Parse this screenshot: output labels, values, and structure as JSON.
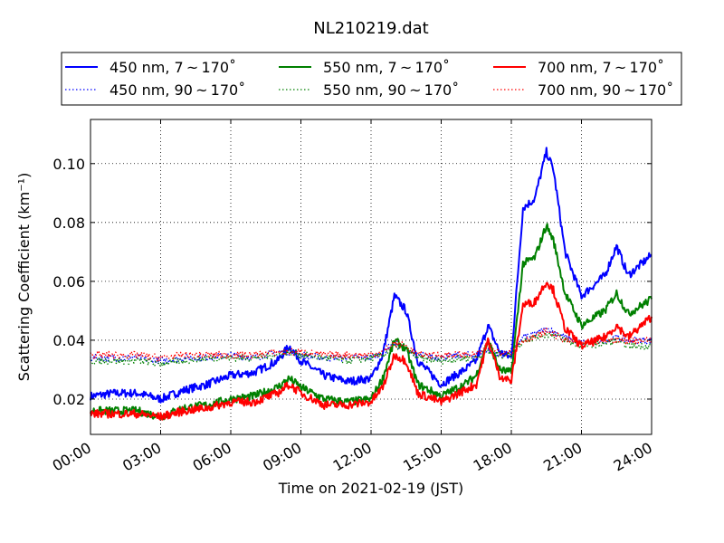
{
  "chart_data": {
    "type": "line",
    "title": "NL210219.dat",
    "xlabel": "Time on 2021-02-19 (JST)",
    "ylabel": "Scattering Coefficient (km⁻¹)",
    "xlim": [
      0,
      24
    ],
    "ylim": [
      0.008,
      0.115
    ],
    "xticks": [
      0,
      3,
      6,
      9,
      12,
      15,
      18,
      21,
      24
    ],
    "xtick_labels": [
      "00:00",
      "03:00",
      "06:00",
      "09:00",
      "12:00",
      "15:00",
      "18:00",
      "21:00",
      "24:00"
    ],
    "yticks": [
      0.02,
      0.04,
      0.06,
      0.08,
      0.1
    ],
    "ytick_labels": [
      "0.02",
      "0.04",
      "0.06",
      "0.08",
      "0.10"
    ],
    "grid": true,
    "legend_position": "top-center",
    "x": [
      0,
      1,
      2,
      3,
      4,
      5,
      6,
      7,
      8,
      8.5,
      9,
      10,
      11,
      12,
      12.5,
      13,
      13.5,
      14,
      15,
      16,
      16.5,
      17,
      17.5,
      18,
      18.5,
      19,
      19.5,
      19.8,
      20.3,
      21,
      22,
      22.5,
      23,
      24
    ],
    "series": [
      {
        "name": "450 nm, 7 ~ 170˚",
        "color": "#0000ff",
        "style": "solid",
        "values": [
          0.021,
          0.022,
          0.022,
          0.02,
          0.023,
          0.025,
          0.028,
          0.029,
          0.033,
          0.038,
          0.033,
          0.028,
          0.026,
          0.027,
          0.035,
          0.055,
          0.05,
          0.033,
          0.025,
          0.03,
          0.033,
          0.045,
          0.036,
          0.034,
          0.085,
          0.088,
          0.104,
          0.098,
          0.07,
          0.055,
          0.062,
          0.072,
          0.062,
          0.069
        ]
      },
      {
        "name": "450 nm, 90 ~ 170˚",
        "color": "#0000ff",
        "style": "dotted",
        "values": [
          0.034,
          0.034,
          0.034,
          0.033,
          0.034,
          0.034,
          0.035,
          0.034,
          0.036,
          0.036,
          0.035,
          0.034,
          0.034,
          0.034,
          0.036,
          0.039,
          0.037,
          0.035,
          0.034,
          0.035,
          0.035,
          0.037,
          0.035,
          0.036,
          0.041,
          0.042,
          0.044,
          0.043,
          0.041,
          0.039,
          0.04,
          0.041,
          0.04,
          0.04
        ]
      },
      {
        "name": "550 nm, 7 ~ 170˚",
        "color": "#008000",
        "style": "solid",
        "values": [
          0.016,
          0.016,
          0.016,
          0.014,
          0.017,
          0.018,
          0.02,
          0.021,
          0.024,
          0.027,
          0.024,
          0.02,
          0.019,
          0.02,
          0.027,
          0.04,
          0.037,
          0.025,
          0.021,
          0.025,
          0.028,
          0.04,
          0.03,
          0.029,
          0.066,
          0.068,
          0.079,
          0.074,
          0.056,
          0.045,
          0.05,
          0.056,
          0.049,
          0.054
        ]
      },
      {
        "name": "550 nm, 90 ~ 170˚",
        "color": "#008000",
        "style": "dotted",
        "values": [
          0.033,
          0.033,
          0.033,
          0.032,
          0.033,
          0.034,
          0.034,
          0.034,
          0.035,
          0.036,
          0.035,
          0.034,
          0.033,
          0.034,
          0.035,
          0.038,
          0.037,
          0.034,
          0.033,
          0.034,
          0.034,
          0.036,
          0.035,
          0.035,
          0.04,
          0.041,
          0.042,
          0.042,
          0.04,
          0.038,
          0.039,
          0.04,
          0.038,
          0.038
        ]
      },
      {
        "name": "700 nm, 7 ~ 170˚",
        "color": "#ff0000",
        "style": "solid",
        "values": [
          0.015,
          0.015,
          0.015,
          0.014,
          0.016,
          0.017,
          0.019,
          0.019,
          0.022,
          0.025,
          0.022,
          0.018,
          0.018,
          0.019,
          0.024,
          0.035,
          0.033,
          0.022,
          0.019,
          0.023,
          0.025,
          0.04,
          0.028,
          0.026,
          0.052,
          0.053,
          0.06,
          0.057,
          0.044,
          0.038,
          0.041,
          0.045,
          0.041,
          0.048
        ]
      },
      {
        "name": "700 nm, 90 ~ 170˚",
        "color": "#ff0000",
        "style": "dotted",
        "values": [
          0.035,
          0.035,
          0.035,
          0.034,
          0.035,
          0.035,
          0.035,
          0.035,
          0.036,
          0.036,
          0.036,
          0.035,
          0.035,
          0.035,
          0.036,
          0.039,
          0.038,
          0.035,
          0.035,
          0.035,
          0.035,
          0.038,
          0.036,
          0.036,
          0.04,
          0.041,
          0.043,
          0.042,
          0.04,
          0.039,
          0.04,
          0.04,
          0.04,
          0.04
        ]
      }
    ]
  }
}
